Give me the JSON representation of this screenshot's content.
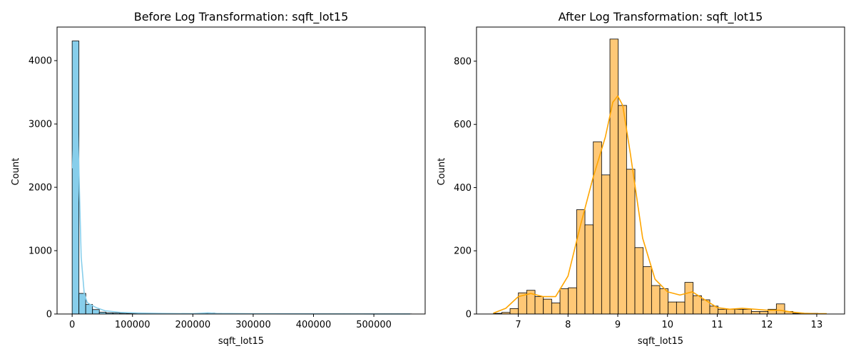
{
  "chart_data": [
    {
      "type": "bar",
      "title": "Before Log Transformation: sqft_lot15",
      "xlabel": "sqft_lot15",
      "ylabel": "Count",
      "xlim": [
        -25000,
        585000
      ],
      "ylim": [
        0,
        4530
      ],
      "xticks": [
        0,
        100000,
        200000,
        300000,
        400000,
        500000
      ],
      "xticklabels": [
        "0",
        "100000",
        "200000",
        "300000",
        "400000",
        "500000"
      ],
      "yticks": [
        0,
        1000,
        2000,
        3000,
        4000
      ],
      "yticklabels": [
        "0",
        "1000",
        "2000",
        "3000",
        "4000"
      ],
      "bin_start": 0,
      "bin_width": 11250,
      "counts": [
        4310,
        325,
        150,
        70,
        28,
        18,
        15,
        12,
        10,
        8,
        5,
        3,
        2,
        2,
        2,
        2,
        2,
        3,
        5,
        12,
        15,
        8,
        5,
        3,
        2,
        2,
        2,
        2,
        2,
        2,
        2,
        2,
        2,
        2,
        2,
        2,
        2,
        2,
        2,
        2,
        2,
        2,
        2,
        2,
        2,
        2,
        2,
        2,
        2,
        2
      ],
      "kde_x": [
        660,
        5000,
        10000,
        15000,
        20000,
        25000,
        30000,
        40000,
        55000,
        80000,
        110000,
        150000,
        200000,
        215000,
        225000,
        240000,
        300000,
        400000,
        500000,
        560000
      ],
      "kde_y": [
        2300,
        4180,
        2700,
        900,
        320,
        180,
        150,
        100,
        50,
        25,
        15,
        8,
        5,
        12,
        18,
        8,
        3,
        2,
        1,
        1
      ],
      "grid": false,
      "bar_color": "#87ceeb",
      "line_color": "#87ceeb"
    },
    {
      "type": "bar",
      "title": "After Log Transformation: sqft_lot15",
      "xlabel": "sqft_lot15",
      "ylabel": "Count",
      "xlim": [
        6.16,
        13.56
      ],
      "ylim": [
        0,
        908
      ],
      "xticks": [
        7,
        8,
        9,
        10,
        11,
        12,
        13
      ],
      "xticklabels": [
        "7",
        "8",
        "9",
        "10",
        "11",
        "12",
        "13"
      ],
      "yticks": [
        0,
        200,
        400,
        600,
        800
      ],
      "yticklabels": [
        "0",
        "200",
        "400",
        "600",
        "800"
      ],
      "bin_start": 6.5,
      "bin_width": 0.1673,
      "counts": [
        2,
        5,
        17,
        67,
        75,
        55,
        47,
        35,
        80,
        83,
        330,
        282,
        545,
        440,
        870,
        660,
        458,
        210,
        150,
        90,
        80,
        38,
        38,
        100,
        58,
        45,
        25,
        15,
        15,
        15,
        15,
        8,
        8,
        15,
        32,
        8,
        2,
        2,
        2,
        1
      ],
      "kde_x": [
        6.5,
        6.75,
        7.0,
        7.25,
        7.5,
        7.75,
        8.0,
        8.25,
        8.5,
        8.75,
        8.9,
        9.0,
        9.1,
        9.25,
        9.5,
        9.75,
        10.0,
        10.25,
        10.5,
        10.75,
        11.0,
        11.25,
        11.5,
        11.75,
        12.0,
        12.25,
        12.5,
        12.75,
        13.0,
        13.2
      ],
      "kde_y": [
        3,
        18,
        55,
        65,
        55,
        55,
        120,
        280,
        430,
        560,
        670,
        690,
        660,
        510,
        240,
        110,
        70,
        60,
        70,
        45,
        20,
        15,
        18,
        15,
        12,
        12,
        6,
        2,
        1,
        1
      ],
      "grid": false,
      "bar_color": "#ffc876",
      "line_color": "#ffa500"
    }
  ]
}
